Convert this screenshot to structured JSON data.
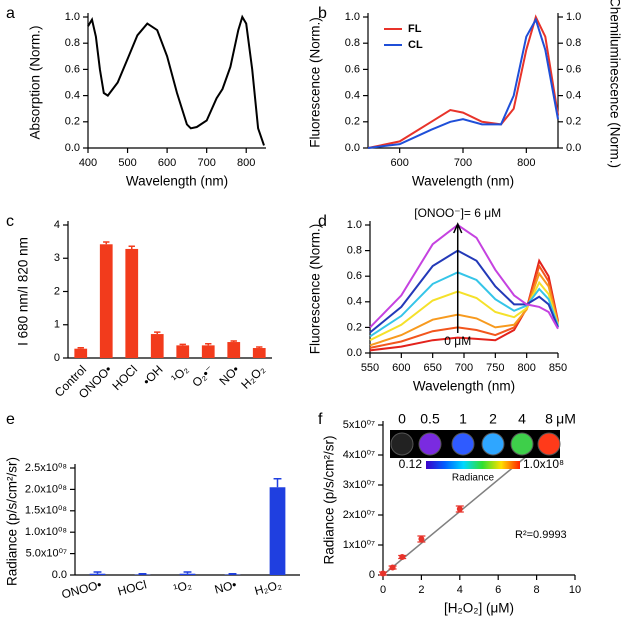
{
  "chart_data": [
    {
      "type": "line",
      "panel": "a",
      "xlabel": "Wavelength (nm)",
      "ylabel": "Absorption (Norm.)",
      "x": [
        400,
        410,
        420,
        430,
        440,
        450,
        475,
        500,
        525,
        550,
        575,
        600,
        625,
        650,
        660,
        675,
        700,
        725,
        740,
        760,
        780,
        790,
        800,
        815,
        830,
        845
      ],
      "series": [
        {
          "color": "#000000",
          "values": [
            0.93,
            0.98,
            0.85,
            0.6,
            0.42,
            0.4,
            0.5,
            0.68,
            0.86,
            0.95,
            0.9,
            0.7,
            0.42,
            0.18,
            0.15,
            0.16,
            0.21,
            0.38,
            0.45,
            0.62,
            0.9,
            1.0,
            0.95,
            0.6,
            0.15,
            0.02
          ]
        }
      ],
      "xlim": [
        400,
        850
      ],
      "xticks": [
        400,
        500,
        600,
        700,
        800
      ],
      "ylim": [
        0,
        1
      ],
      "yticks": [
        {
          "value": 0,
          "label": "0.0"
        },
        0.2,
        0.4,
        0.6,
        0.8,
        {
          "value": 1,
          "label": "1.0"
        }
      ]
    },
    {
      "type": "line",
      "panel": "b",
      "xlabel": "Wavelength (nm)",
      "ylabel": "Fluorescence (Norm.)",
      "y2label": "Chemiluminescence (Norm.)",
      "x": [
        550,
        600,
        650,
        680,
        700,
        730,
        760,
        780,
        800,
        815,
        830,
        850
      ],
      "series": [
        {
          "name": "FL",
          "color": "#e8332a",
          "values": [
            0.0,
            0.05,
            0.2,
            0.29,
            0.27,
            0.2,
            0.18,
            0.3,
            0.75,
            1.0,
            0.85,
            0.25
          ]
        },
        {
          "name": "CL",
          "color": "#1f4fd8",
          "values": [
            0.0,
            0.03,
            0.14,
            0.2,
            0.22,
            0.18,
            0.18,
            0.4,
            0.85,
            0.98,
            0.75,
            0.22
          ],
          "axis": "y2"
        }
      ],
      "legend": "upper left",
      "xlim": [
        550,
        850
      ],
      "xticks": [
        600,
        700,
        800
      ],
      "ylim": [
        0,
        1
      ],
      "yticks": [
        {
          "value": 0,
          "label": "0.0"
        },
        0.2,
        0.4,
        0.6,
        0.8,
        {
          "value": 1,
          "label": "1.0"
        }
      ],
      "y2lim": [
        0,
        1
      ],
      "y2ticks": [
        {
          "value": 0,
          "label": "0.0"
        },
        0.2,
        0.4,
        0.6,
        0.8,
        {
          "value": 1,
          "label": "1.0"
        }
      ]
    },
    {
      "type": "bar",
      "panel": "c",
      "ylabel": "I 680 nm/I 820 nm",
      "color": "#f23b1c",
      "categories": [
        "Control",
        "ONOO•",
        "HOCl",
        "•OH",
        "¹O₂",
        "O₂•⁻",
        "NO•",
        "H₂O₂"
      ],
      "values": [
        0.28,
        3.42,
        3.28,
        0.72,
        0.38,
        0.38,
        0.48,
        0.3
      ],
      "errors": [
        0.03,
        0.07,
        0.08,
        0.06,
        0.03,
        0.05,
        0.03,
        0.03
      ],
      "ylim": [
        0,
        4
      ],
      "yticks": [
        0,
        1,
        2,
        3,
        4
      ]
    },
    {
      "type": "line",
      "panel": "d",
      "xlabel": "Wavelength (nm)",
      "ylabel": "Fluorescence (Norm.)",
      "annotations": [
        "[ONOO⁻]= 6 μM",
        "0 μM"
      ],
      "x": [
        550,
        600,
        650,
        690,
        720,
        750,
        780,
        800,
        820,
        835,
        850
      ],
      "series": [
        {
          "color": "#e3221c",
          "values": [
            0.02,
            0.05,
            0.1,
            0.12,
            0.11,
            0.1,
            0.18,
            0.35,
            0.72,
            0.6,
            0.25
          ]
        },
        {
          "color": "#f2561d",
          "values": [
            0.04,
            0.09,
            0.17,
            0.2,
            0.18,
            0.14,
            0.2,
            0.35,
            0.68,
            0.56,
            0.24
          ]
        },
        {
          "color": "#f79a1e",
          "values": [
            0.06,
            0.14,
            0.26,
            0.3,
            0.27,
            0.2,
            0.22,
            0.34,
            0.62,
            0.52,
            0.23
          ]
        },
        {
          "color": "#f5e12a",
          "values": [
            0.1,
            0.22,
            0.41,
            0.48,
            0.43,
            0.32,
            0.28,
            0.35,
            0.55,
            0.46,
            0.22
          ]
        },
        {
          "color": "#35c5e8",
          "values": [
            0.13,
            0.29,
            0.54,
            0.63,
            0.57,
            0.42,
            0.33,
            0.37,
            0.5,
            0.42,
            0.21
          ]
        },
        {
          "color": "#2339b8",
          "values": [
            0.16,
            0.36,
            0.68,
            0.8,
            0.72,
            0.52,
            0.38,
            0.38,
            0.44,
            0.38,
            0.2
          ]
        },
        {
          "color": "#c542e0",
          "values": [
            0.2,
            0.45,
            0.85,
            1.0,
            0.9,
            0.65,
            0.45,
            0.38,
            0.36,
            0.32,
            0.19
          ]
        }
      ],
      "xlim": [
        550,
        850
      ],
      "xticks": [
        550,
        600,
        650,
        700,
        750,
        800,
        850
      ],
      "ylim": [
        0,
        1
      ],
      "yticks": [
        {
          "value": 0,
          "label": "0.0"
        },
        0.2,
        0.4,
        0.6,
        0.8,
        {
          "value": 1,
          "label": "1.0"
        }
      ]
    },
    {
      "type": "bar",
      "panel": "e",
      "ylabel": "Radiance (p/s/cm²/sr)",
      "color": "#1f3fe0",
      "categories": [
        "ONOO•",
        "HOCl",
        "¹O₂",
        "NO•",
        "H₂O₂"
      ],
      "values": [
        3000000,
        1000000,
        3000000,
        1000000,
        205000000
      ],
      "errors": [
        4000000,
        2000000,
        4000000,
        2000000,
        20000000
      ],
      "ylim": [
        0,
        250000000
      ],
      "yticks": [
        {
          "value": 0,
          "label": "0.0"
        },
        {
          "value": 50000000,
          "label": "5.0x10⁰⁷"
        },
        {
          "value": 100000000,
          "label": "1.0x10⁰⁸"
        },
        {
          "value": 150000000,
          "label": "1.5x10⁰⁸"
        },
        {
          "value": 200000000,
          "label": "2.0x10⁰⁸"
        },
        {
          "value": 250000000,
          "label": "2.5x10⁰⁸"
        }
      ]
    },
    {
      "type": "scatter",
      "panel": "f",
      "xlabel": "[H₂O₂] (μM)",
      "ylabel": "Radiance (p/s/cm²/sr)",
      "color": "#e8332a",
      "annotations": [
        "R²=0.9993"
      ],
      "x": [
        0,
        0.5,
        1,
        2,
        4,
        8
      ],
      "values": [
        500000,
        2500000,
        6000000,
        12000000,
        22000000,
        43000000
      ],
      "errors": [
        500000,
        500000,
        500000,
        1000000,
        1000000,
        800000
      ],
      "lines": [
        {
          "color": "#808080",
          "x": [
            0,
            8.5
          ],
          "values": [
            0,
            45000000
          ]
        }
      ],
      "inset": {
        "labels": [
          "0",
          "0.5",
          "1",
          "2",
          "4",
          "8"
        ],
        "unit": "μM",
        "colorbar_min": "0.12",
        "colorbar_max": "1.0x10⁸",
        "colorbar_label": "Radiance"
      },
      "xlim": [
        0,
        10
      ],
      "xticks": [
        0,
        2,
        4,
        6,
        8,
        10
      ],
      "ylim": [
        0,
        50000000
      ],
      "yticks": [
        0,
        {
          "value": 10000000,
          "label": "1x10⁰⁷"
        },
        {
          "value": 20000000,
          "label": "2x10⁰⁷"
        },
        {
          "value": 30000000,
          "label": "3x10⁰⁷"
        },
        {
          "value": 40000000,
          "label": "4x10⁰⁷"
        },
        {
          "value": 50000000,
          "label": "5x10⁰⁷"
        }
      ]
    }
  ]
}
